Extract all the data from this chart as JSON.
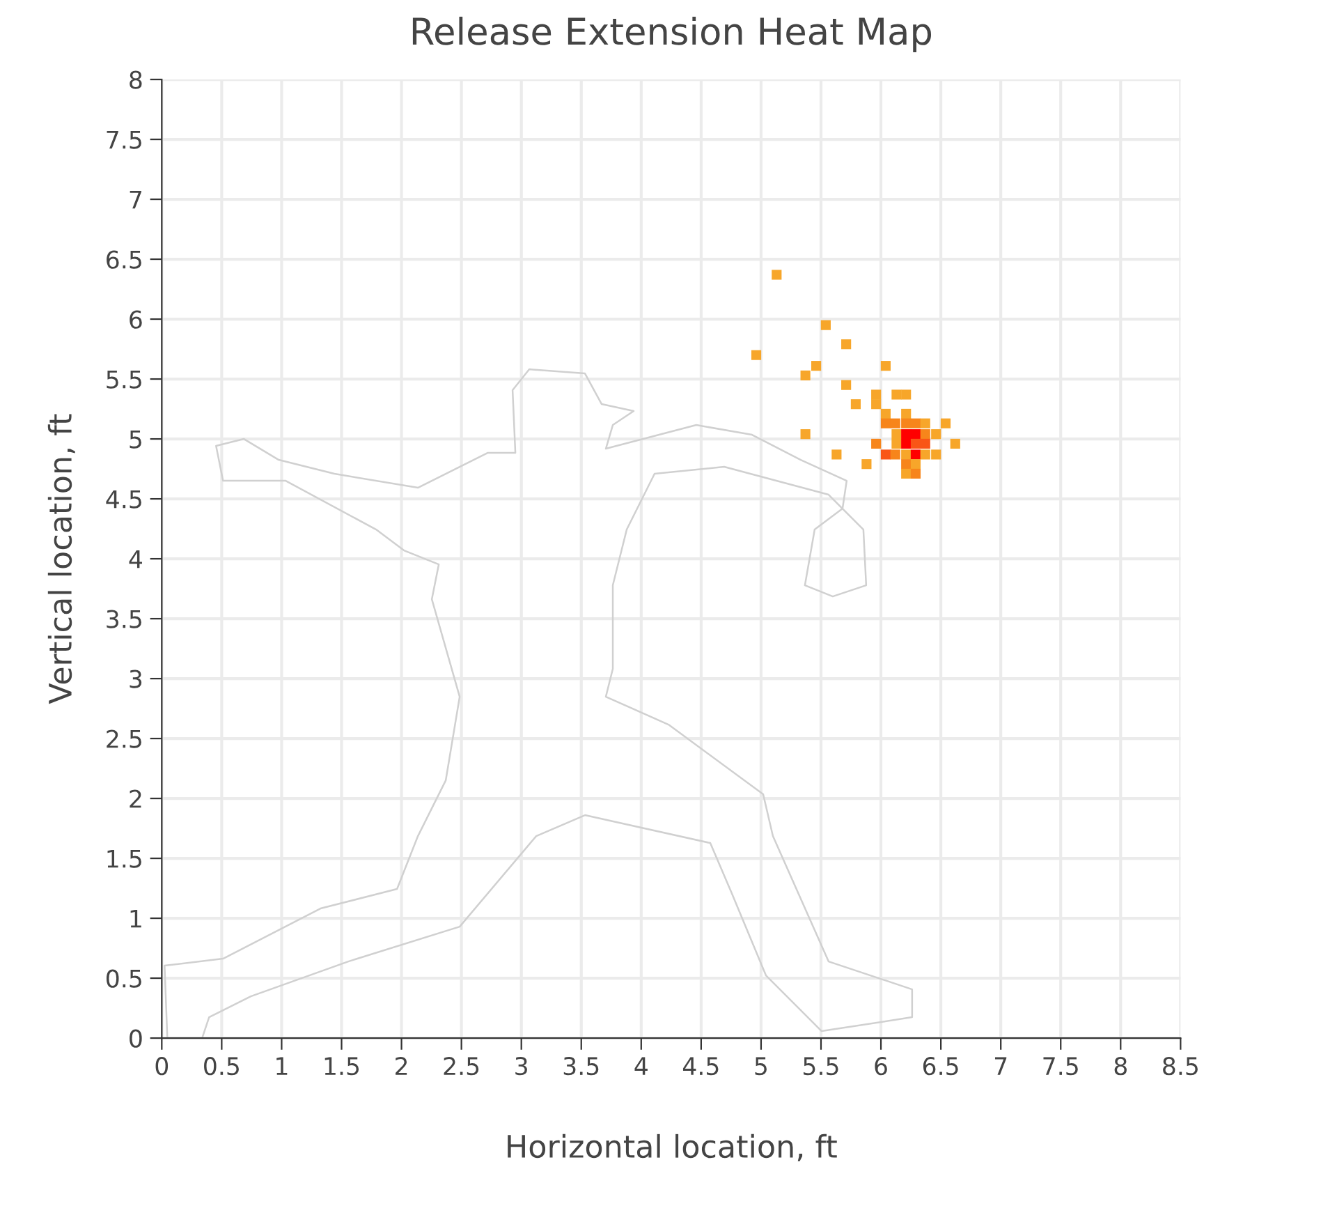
{
  "chart_data": {
    "type": "scatter",
    "title": "Release Extension Heat Map",
    "xlabel": "Horizontal location, ft",
    "ylabel": "Vertical location, ft",
    "xlim": [
      0,
      8.5
    ],
    "ylim": [
      0,
      8
    ],
    "xticks": [
      0,
      0.5,
      1,
      1.5,
      2,
      2.5,
      3,
      3.5,
      4,
      4.5,
      5,
      5.5,
      6,
      6.5,
      7,
      7.5,
      8,
      8.5
    ],
    "yticks": [
      0,
      0.5,
      1,
      1.5,
      2,
      2.5,
      3,
      3.5,
      4,
      4.5,
      5,
      5.5,
      6,
      6.5,
      7,
      7.5,
      8
    ],
    "grid": true,
    "marker": "square",
    "series": [
      {
        "x": [
          5.13,
          5.54,
          5.71,
          4.96,
          5.46,
          5.37,
          6.04,
          5.71,
          5.96,
          5.96,
          5.79,
          6.13,
          6.21,
          6.04,
          6.21,
          6.04,
          6.12,
          6.21,
          6.29,
          6.37,
          6.54,
          5.37,
          6.13,
          6.21,
          6.29,
          6.37,
          6.46,
          5.96,
          6.13,
          6.21,
          6.29,
          6.37,
          6.62,
          5.63,
          6.04,
          6.12,
          6.21,
          6.29,
          6.37,
          6.46,
          5.88,
          6.21,
          6.29,
          6.21,
          6.29
        ],
        "values": [
          6.37,
          5.95,
          5.79,
          5.7,
          5.61,
          5.53,
          5.61,
          5.45,
          5.37,
          5.29,
          5.29,
          5.37,
          5.37,
          5.21,
          5.21,
          5.13,
          5.13,
          5.13,
          5.13,
          5.13,
          5.13,
          5.04,
          5.04,
          5.04,
          5.04,
          5.04,
          5.04,
          4.96,
          4.96,
          4.96,
          4.96,
          4.96,
          4.96,
          4.87,
          4.87,
          4.87,
          4.87,
          4.87,
          4.87,
          4.87,
          4.79,
          4.79,
          4.79,
          4.71,
          4.71
        ],
        "colors": [
          "#f7a62a",
          "#f7a62a",
          "#f7a62a",
          "#f7a62a",
          "#f7a62a",
          "#f7a62a",
          "#f7a62a",
          "#f7a62a",
          "#f7a62a",
          "#f7a62a",
          "#f7a62a",
          "#f7a62a",
          "#f7a62a",
          "#f7a62a",
          "#f7a62a",
          "#f7851b",
          "#f7851b",
          "#f7851b",
          "#f7851b",
          "#f7a62a",
          "#f7a62a",
          "#f7a62a",
          "#f7a62a",
          "#ff0000",
          "#ff0000",
          "#f7851b",
          "#f7a62a",
          "#f7851b",
          "#f7a62a",
          "#ff0000",
          "#f95516",
          "#f95516",
          "#f7a62a",
          "#f7a62a",
          "#f95516",
          "#f7851b",
          "#f7a62a",
          "#ff0000",
          "#f7a62a",
          "#f7a62a",
          "#f7a62a",
          "#f7851b",
          "#f7a62a",
          "#f7a62a",
          "#f7851b"
        ]
      }
    ]
  }
}
